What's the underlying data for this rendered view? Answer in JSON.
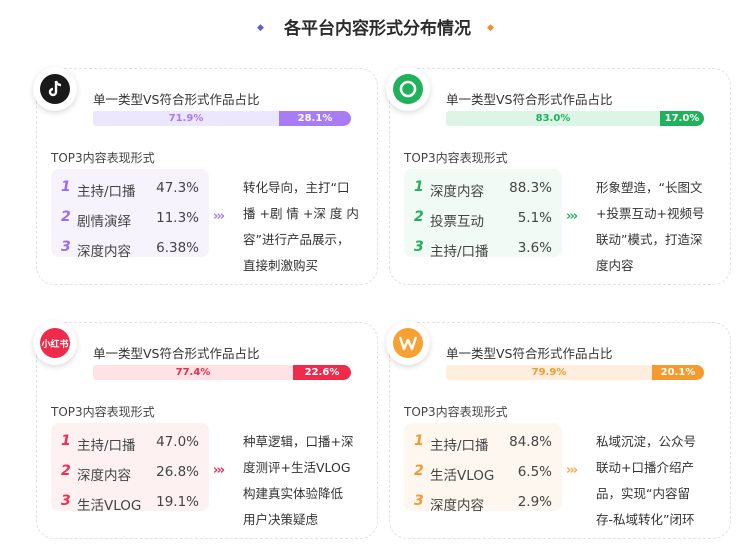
{
  "header": {
    "title": "各平台内容形式分布情况"
  },
  "colors": {
    "diamond_left": "#5b5fd6",
    "diamond_right": "#f08b2e"
  },
  "chart_data": [
    {
      "type": "bar",
      "platform_icon": "douyin-icon",
      "title": "单一类型VS符合形式作品占比",
      "segments": [
        {
          "value": 71.9,
          "label": "71.9%"
        },
        {
          "value": 28.1,
          "label": "28.1%"
        }
      ],
      "colors": {
        "light": "#ede6ff",
        "dark": "#a77cf4",
        "rank": "#9b6cf0",
        "list_bg": "#f6f3fd",
        "arrow": "#a77cf4"
      },
      "top3_label": "TOP3内容表现形式",
      "top3": [
        {
          "rank": "1",
          "label": "主持/口播",
          "pct": "47.3%"
        },
        {
          "rank": "2",
          "label": "剧情演绎",
          "pct": "11.3%"
        },
        {
          "rank": "3",
          "label": "深度内容",
          "pct": "6.38%"
        }
      ],
      "desc": [
        "转化导向，主打“口",
        "播 +剧 情 +深 度 内",
        "容”进行产品展示，",
        "直接刺激购买"
      ]
    },
    {
      "type": "bar",
      "platform_icon": "wechat-channels-icon",
      "title": "单一类型VS符合形式作品占比",
      "segments": [
        {
          "value": 83.0,
          "label": "83.0%"
        },
        {
          "value": 17.0,
          "label": "17.0%"
        }
      ],
      "colors": {
        "light": "#ddf5e6",
        "dark": "#1fb25a",
        "rank": "#22b05c",
        "list_bg": "#f1faf4",
        "arrow": "#22b05c"
      },
      "top3_label": "TOP3内容表现形式",
      "top3": [
        {
          "rank": "1",
          "label": "深度内容",
          "pct": "88.3%"
        },
        {
          "rank": "2",
          "label": "投票互动",
          "pct": "5.1%"
        },
        {
          "rank": "3",
          "label": "主持/口播",
          "pct": "3.6%"
        }
      ],
      "desc": [
        "形象塑造，“长图文",
        "+投票互动+视频号",
        "联动”模式，打造深",
        "度内容"
      ]
    },
    {
      "type": "bar",
      "platform_icon": "xiaohongshu-icon",
      "logo_text": "小红书",
      "title": "单一类型VS符合形式作品占比",
      "segments": [
        {
          "value": 77.4,
          "label": "77.4%"
        },
        {
          "value": 22.6,
          "label": "22.6%"
        }
      ],
      "colors": {
        "light": "#fde3e6",
        "dark": "#f02a4b",
        "rank": "#ee2f4f",
        "list_bg": "#fdf1f2",
        "arrow": "#ee2f4f"
      },
      "top3_label": "TOP3内容表现形式",
      "top3": [
        {
          "rank": "1",
          "label": "主持/口播",
          "pct": "47.0%"
        },
        {
          "rank": "2",
          "label": "深度内容",
          "pct": "26.8%"
        },
        {
          "rank": "3",
          "label": "生活VLOG",
          "pct": "19.1%"
        }
      ],
      "desc": [
        "种草逻辑，口播+深",
        "度测评+生活VLOG",
        "构建真实体验降低",
        "用户决策疑虑"
      ]
    },
    {
      "type": "bar",
      "platform_icon": "weibo-icon",
      "title": "单一类型VS符合形式作品占比",
      "segments": [
        {
          "value": 79.9,
          "label": "79.9%"
        },
        {
          "value": 20.1,
          "label": "20.1%"
        }
      ],
      "colors": {
        "light": "#ffeedd",
        "dark": "#f79a2d",
        "rank": "#f39a30",
        "list_bg": "#fef7ef",
        "arrow": "#f5a742"
      },
      "top3_label": "TOP3内容表现形式",
      "top3": [
        {
          "rank": "1",
          "label": "主持/口播",
          "pct": "84.8%"
        },
        {
          "rank": "2",
          "label": "生活VLOG",
          "pct": "6.5%"
        },
        {
          "rank": "3",
          "label": "深度内容",
          "pct": "2.9%"
        }
      ],
      "desc": [
        "私域沉淀，公众号",
        "联动+口播介绍产",
        "品，实现“内容留",
        "存-私域转化”闭环"
      ]
    }
  ]
}
